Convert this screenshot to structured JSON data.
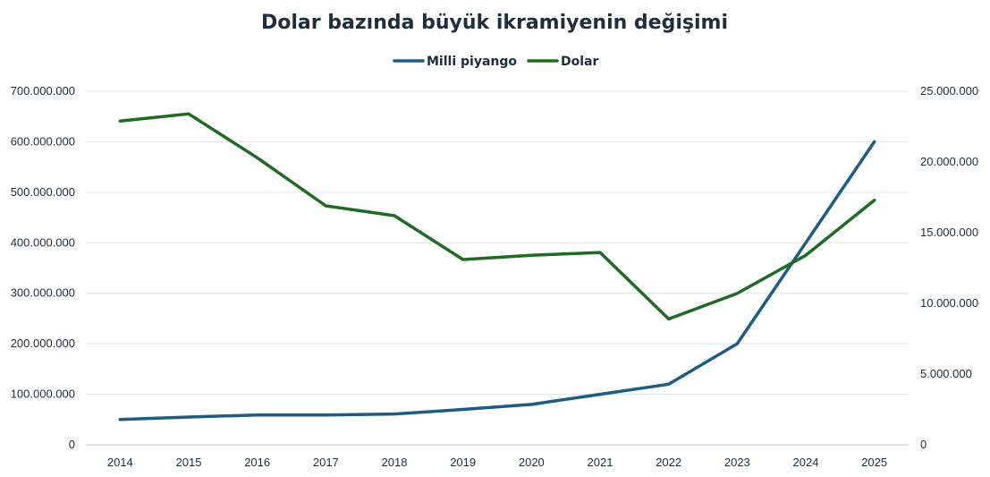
{
  "chart_data": {
    "type": "line",
    "title": "Dolar bazında büyük ikramiyenin değişimi",
    "legend_position": "top",
    "grid": true,
    "x": [
      "2014",
      "2015",
      "2016",
      "2017",
      "2018",
      "2019",
      "2020",
      "2021",
      "2022",
      "2023",
      "2024",
      "2025"
    ],
    "y_left": {
      "range": [
        0,
        700000000
      ],
      "ticks": [
        0,
        100000000,
        200000000,
        300000000,
        400000000,
        500000000,
        600000000,
        700000000
      ],
      "tick_labels": [
        "0",
        "100.000.000",
        "200.000.000",
        "300.000.000",
        "400.000.000",
        "500.000.000",
        "600.000.000",
        "700.000.000"
      ]
    },
    "y_right": {
      "range": [
        0,
        25000000
      ],
      "ticks": [
        0,
        5000000,
        10000000,
        15000000,
        20000000,
        25000000
      ],
      "tick_labels": [
        "0",
        "5.000.000",
        "10.000.000",
        "15.000.000",
        "20.000.000",
        "25.000.000"
      ]
    },
    "series": [
      {
        "name": "Milli piyango",
        "axis": "left",
        "color": "#1f5c82",
        "values": [
          50000000,
          55000000,
          59000000,
          59000000,
          61000000,
          70000000,
          80000000,
          100000000,
          120000000,
          200000000,
          400000000,
          600000000
        ]
      },
      {
        "name": "Dolar",
        "axis": "right",
        "color": "#1e6b24",
        "values": [
          22900000,
          23400000,
          20300000,
          16900000,
          16200000,
          13100000,
          13400000,
          13600000,
          8900000,
          10700000,
          13400000,
          17300000
        ]
      }
    ]
  }
}
